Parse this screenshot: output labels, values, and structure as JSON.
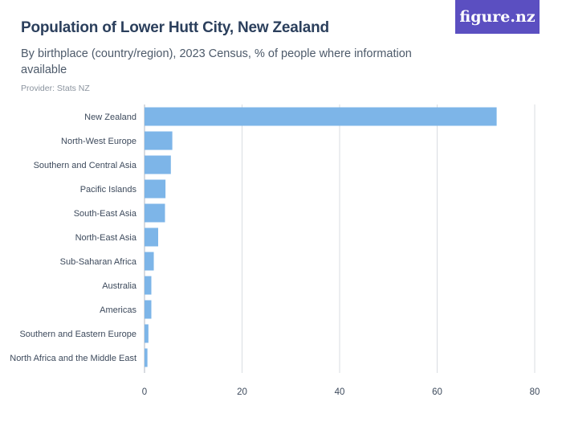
{
  "header": {
    "title": "Population of Lower Hutt City, New Zealand",
    "subtitle": "By birthplace (country/region), 2023 Census, % of people where information available",
    "provider": "Provider: Stats NZ"
  },
  "logo": {
    "text": "figure.nz"
  },
  "colors": {
    "bar": "#7db5e8",
    "logo_bg": "#5b4fc1",
    "title": "#2b3f5c"
  },
  "chart_data": {
    "type": "bar",
    "orientation": "horizontal",
    "categories": [
      "New Zealand",
      "North-West Europe",
      "Southern and Central Asia",
      "Pacific Islands",
      "South-East Asia",
      "North-East Asia",
      "Sub-Saharan Africa",
      "Australia",
      "Americas",
      "Southern and Eastern Europe",
      "North Africa and the Middle East"
    ],
    "values": [
      72.2,
      5.7,
      5.4,
      4.3,
      4.2,
      2.8,
      1.9,
      1.4,
      1.4,
      0.8,
      0.6
    ],
    "xlim": [
      0,
      80
    ],
    "xticks": [
      0,
      20,
      40,
      60,
      80
    ],
    "xlabel": "",
    "ylabel": "",
    "grid": true
  }
}
